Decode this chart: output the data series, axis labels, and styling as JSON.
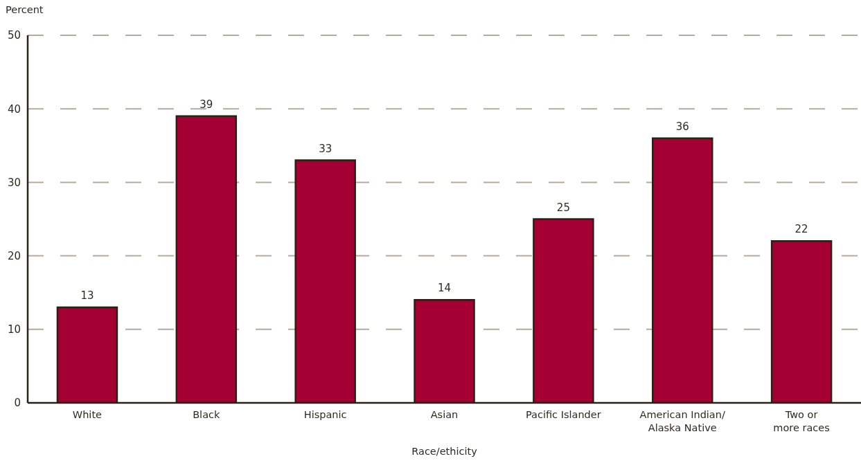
{
  "chart_data": {
    "type": "bar",
    "ylabel": "Percent",
    "xlabel": "Race/ethicity",
    "categories": [
      "White",
      "Black",
      "Hispanic",
      "Asian",
      "Pacific Islander",
      "American Indian/\nAlaska Native",
      "Two or\nmore races"
    ],
    "series": [
      {
        "color": "#a50034",
        "values": [
          13,
          39,
          33,
          14,
          25,
          36,
          22
        ]
      }
    ],
    "ylim": [
      0,
      50
    ],
    "yticks": [
      0,
      10,
      20,
      30,
      40,
      50
    ],
    "grid": "y",
    "data_labels": true
  }
}
